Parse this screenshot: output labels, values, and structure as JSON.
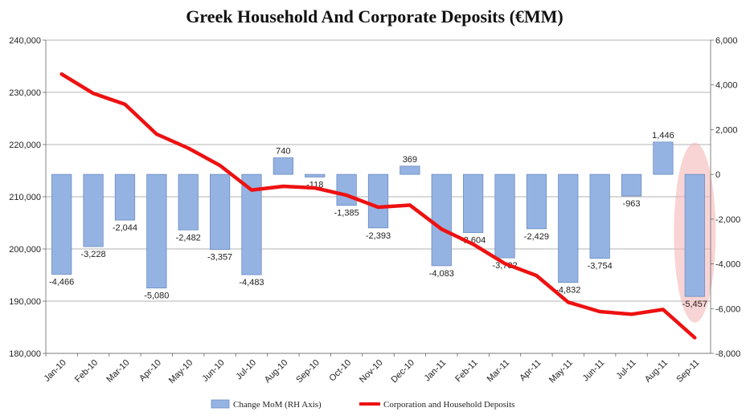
{
  "chart_data": {
    "type": "bar+line",
    "title": "Greek Household And Corporate Deposits (€MM)",
    "categories": [
      "Jan-10",
      "Feb-10",
      "Mar-10",
      "Apr-10",
      "May-10",
      "Jun-10",
      "Jul-10",
      "Aug-10",
      "Sep-10",
      "Oct-10",
      "Nov-10",
      "Dec-10",
      "Jan-11",
      "Feb-11",
      "Mar-11",
      "Apr-11",
      "May-11",
      "Jun-11",
      "Jul-11",
      "Aug-11",
      "Sep-11"
    ],
    "left_axis": {
      "min": 180000,
      "max": 240000,
      "step": 10000,
      "tick_labels": [
        "180,000",
        "190,000",
        "200,000",
        "210,000",
        "220,000",
        "230,000",
        "240,000"
      ]
    },
    "right_axis": {
      "min": -8000,
      "max": 6000,
      "step": 2000,
      "tick_labels": [
        "-8,000",
        "-6,000",
        "-4,000",
        "-2,000",
        "0",
        "2,000",
        "4,000",
        "6,000"
      ]
    },
    "series": [
      {
        "name": "Change MoM (RH Axis)",
        "type": "bar",
        "axis": "right",
        "color": "#95b3e2",
        "values": [
          -4466,
          -3228,
          -2044,
          -5080,
          -2482,
          -3357,
          -4483,
          740,
          -118,
          -1385,
          -2393,
          369,
          -4083,
          -2604,
          -3732,
          -2429,
          -4832,
          -3754,
          -963,
          1446,
          -5457
        ],
        "labels": [
          "-4,466",
          "-3,228",
          "-2,044",
          "-5,080",
          "-2,482",
          "-3,357",
          "-4,483",
          "740",
          "-118",
          "-1,385",
          "-2,393",
          "369",
          "-4,083",
          "-2,604",
          "-3,732",
          "-2,429",
          "-4,832",
          "-3,754",
          "-963",
          "1,446",
          "-5,457"
        ]
      },
      {
        "name": "Corporation and Household Deposits",
        "type": "line",
        "axis": "left",
        "color": "#ee1111",
        "values": [
          233500,
          229800,
          227700,
          222000,
          219300,
          216000,
          211300,
          212000,
          211700,
          210300,
          208000,
          208400,
          203800,
          200900,
          197200,
          194900,
          189800,
          188000,
          187500,
          188400,
          183000
        ]
      }
    ],
    "highlight": {
      "category": "Sep-11",
      "color": "#f4b0b0"
    },
    "legend": {
      "position": "bottom",
      "entries": [
        "Change MoM (RH Axis)",
        "Corporation and Household Deposits"
      ]
    }
  }
}
